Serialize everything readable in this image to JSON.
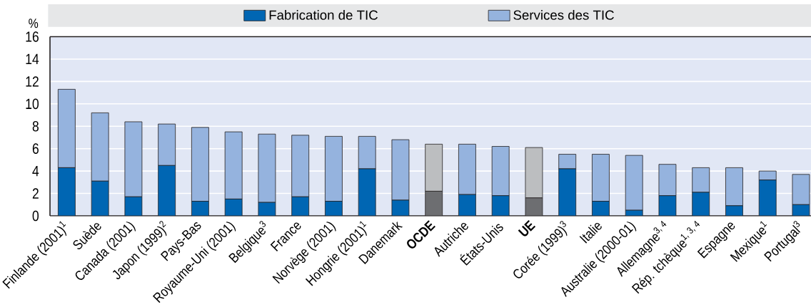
{
  "chart_data": {
    "type": "bar",
    "stacked": true,
    "ylabel": "%",
    "categories": [
      "Finlande (2001)$^{1}$",
      "Suède",
      "Canada (2001)",
      "Japon (1999)$^{2}$",
      "Pays-Bas",
      "Royaume-Uni (2001)",
      "Belgique$^{3}$",
      "France",
      "Norvège (2001)",
      "Hongrie (2001)$^{1}$",
      "Danemark",
      "**OCDE**",
      "Autriche",
      "États-Unis",
      "**UE**",
      "Corée (1999)$^{3}$",
      "Italie",
      "Australie (2000-01)",
      "Allemagne$^{3, 4}$",
      "Rép. tchèque$^{1, 3, 4}$",
      "Espagne",
      "Mexique$^{1}$",
      "Portugal$^{3}$"
    ],
    "series": [
      {
        "name": "Fabrication de TIC",
        "color": "#0066b3",
        "colors": [
          "#0066b3",
          "#0066b3",
          "#0066b3",
          "#0066b3",
          "#0066b3",
          "#0066b3",
          "#0066b3",
          "#0066b3",
          "#0066b3",
          "#0066b3",
          "#0066b3",
          "#6d6e71",
          "#0066b3",
          "#0066b3",
          "#6d6e71",
          "#0066b3",
          "#0066b3",
          "#0066b3",
          "#0066b3",
          "#0066b3",
          "#0066b3",
          "#0066b3",
          "#0066b3"
        ],
        "values": [
          4.3,
          3.1,
          1.7,
          4.5,
          1.3,
          1.5,
          1.2,
          1.7,
          1.3,
          4.2,
          1.4,
          2.2,
          1.9,
          1.8,
          1.6,
          4.2,
          1.3,
          0.5,
          1.8,
          2.1,
          0.9,
          3.2,
          1.0
        ]
      },
      {
        "name": "Services des TIC",
        "color": "#95b3de",
        "colors": [
          "#95b3de",
          "#95b3de",
          "#95b3de",
          "#95b3de",
          "#95b3de",
          "#95b3de",
          "#95b3de",
          "#95b3de",
          "#95b3de",
          "#95b3de",
          "#95b3de",
          "#bcbec0",
          "#95b3de",
          "#95b3de",
          "#bcbec0",
          "#95b3de",
          "#95b3de",
          "#95b3de",
          "#95b3de",
          "#95b3de",
          "#95b3de",
          "#95b3de",
          "#95b3de"
        ],
        "values": [
          7.0,
          6.1,
          6.7,
          3.7,
          6.6,
          6.0,
          6.1,
          5.5,
          5.8,
          2.9,
          5.4,
          4.2,
          4.5,
          4.4,
          4.5,
          1.3,
          4.2,
          4.9,
          2.8,
          2.2,
          3.4,
          0.8,
          2.7
        ]
      }
    ],
    "ylim": [
      0,
      16
    ],
    "yticks": [
      0,
      2,
      4,
      6,
      8,
      10,
      12,
      14,
      16
    ],
    "grid": "y",
    "legend": "top"
  }
}
